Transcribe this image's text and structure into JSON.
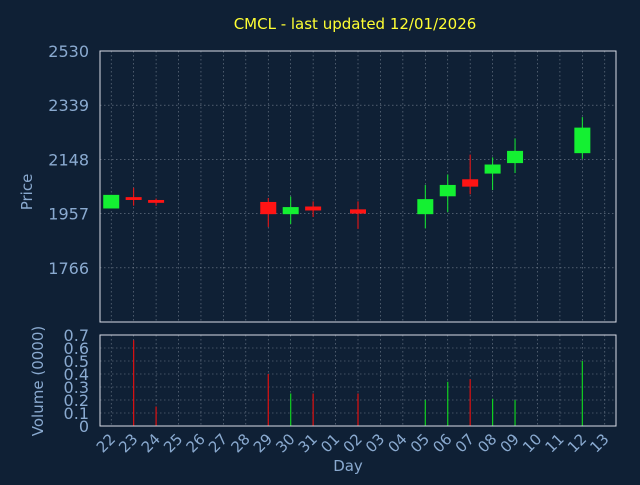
{
  "chart_data": {
    "title": "CMCL - last updated 12/01/2026",
    "type": "candlestick",
    "xlabel": "Day",
    "x_ticks": [
      "22",
      "23",
      "24",
      "25",
      "26",
      "27",
      "28",
      "29",
      "30",
      "31",
      "01",
      "02",
      "03",
      "04",
      "05",
      "06",
      "07",
      "08",
      "09",
      "10",
      "11",
      "12",
      "13"
    ],
    "price_panel": {
      "ylabel": "Price",
      "ylim": [
        1575,
        2530
      ],
      "y_ticks": [
        "2530",
        "2339",
        "2148",
        "1957",
        "1766"
      ],
      "y_tick_values": [
        2530,
        2339,
        2148,
        1957,
        1766
      ],
      "grid": true
    },
    "volume_panel": {
      "ylabel": "Volume (0000)",
      "ylim": [
        0,
        0.7
      ],
      "y_ticks": [
        "0.7",
        "0.6",
        "0.5",
        "0.4",
        "0.3",
        "0.2",
        "0.1",
        "0"
      ],
      "y_tick_values": [
        0.7,
        0.6,
        0.5,
        0.4,
        0.3,
        0.2,
        0.1,
        0
      ],
      "grid": true
    },
    "candles": [
      {
        "day": "22",
        "open": 1975,
        "close": 2023,
        "high": 2023,
        "low": 1975
      },
      {
        "day": "23",
        "open": 2015,
        "close": 2005,
        "high": 2048,
        "low": 1985
      },
      {
        "day": "24",
        "open": 2005,
        "close": 1995,
        "high": 2010,
        "low": 1985
      },
      {
        "day": "29",
        "open": 1998,
        "close": 1955,
        "high": 2012,
        "low": 1910
      },
      {
        "day": "30",
        "open": 1955,
        "close": 1980,
        "high": 2017,
        "low": 1920
      },
      {
        "day": "31",
        "open": 1982,
        "close": 1968,
        "high": 2000,
        "low": 1945
      },
      {
        "day": "02",
        "open": 1972,
        "close": 1957,
        "high": 2000,
        "low": 1903
      },
      {
        "day": "05",
        "open": 1955,
        "close": 2008,
        "high": 2058,
        "low": 1905
      },
      {
        "day": "06",
        "open": 2018,
        "close": 2058,
        "high": 2095,
        "low": 1962
      },
      {
        "day": "07",
        "open": 2078,
        "close": 2052,
        "high": 2165,
        "low": 2025
      },
      {
        "day": "08",
        "open": 2098,
        "close": 2130,
        "high": 2155,
        "low": 2040
      },
      {
        "day": "09",
        "open": 2135,
        "close": 2178,
        "high": 2222,
        "low": 2100
      },
      {
        "day": "12",
        "open": 2170,
        "close": 2260,
        "high": 2297,
        "low": 2150
      }
    ],
    "volume": [
      {
        "day": "23",
        "value": 0.66,
        "color": "#e01010"
      },
      {
        "day": "24",
        "value": 0.15,
        "color": "#e01010"
      },
      {
        "day": "29",
        "value": 0.4,
        "color": "#e01010"
      },
      {
        "day": "30",
        "value": 0.25,
        "color": "#10d020"
      },
      {
        "day": "31",
        "value": 0.25,
        "color": "#e01010"
      },
      {
        "day": "02",
        "value": 0.25,
        "color": "#e01010"
      },
      {
        "day": "05",
        "value": 0.2,
        "color": "#10d020"
      },
      {
        "day": "06",
        "value": 0.34,
        "color": "#10d020"
      },
      {
        "day": "07",
        "value": 0.36,
        "color": "#e01010"
      },
      {
        "day": "08",
        "value": 0.21,
        "color": "#10d020"
      },
      {
        "day": "09",
        "value": 0.2,
        "color": "#10d020"
      },
      {
        "day": "12",
        "value": 0.5,
        "color": "#10d020"
      }
    ],
    "colors": {
      "background": "#0f2035",
      "title": "#ffff33",
      "axis_text": "#8aaad0",
      "grid": "#c8d0dc",
      "up": "#14f032",
      "down": "#ff1414"
    }
  }
}
